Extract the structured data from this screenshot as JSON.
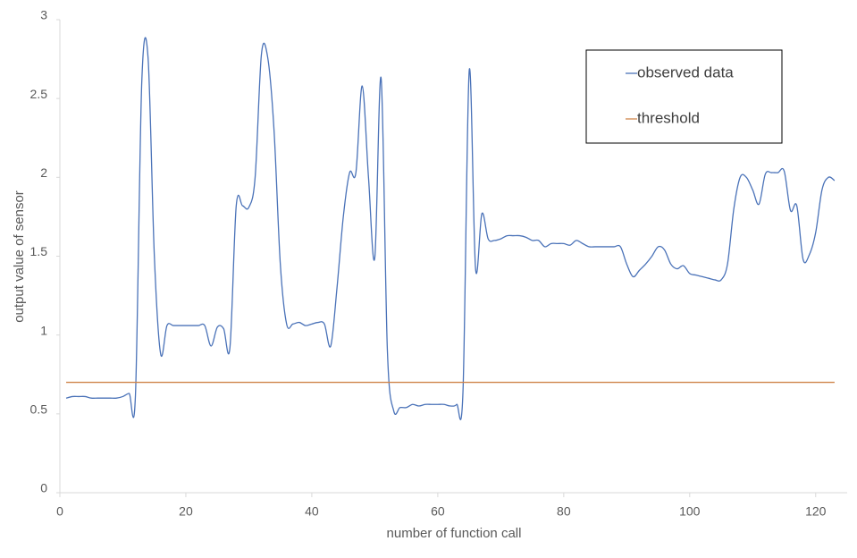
{
  "chart_data": {
    "type": "line",
    "x_label": "number of function call",
    "y_label": "output value of sensor",
    "xlim": [
      0,
      125
    ],
    "ylim": [
      0,
      3
    ],
    "xticks": [
      0,
      20,
      40,
      60,
      80,
      100,
      120
    ],
    "yticks": [
      0,
      0.5,
      1,
      1.5,
      2,
      2.5,
      3
    ],
    "grid": false,
    "legend": "upper right",
    "series": [
      {
        "name": "observed data",
        "color": "#4a72b8",
        "x": [
          1,
          2,
          3,
          4,
          5,
          6,
          7,
          8,
          9,
          10,
          11,
          12,
          13,
          14,
          15,
          16,
          17,
          18,
          19,
          20,
          21,
          22,
          23,
          24,
          25,
          26,
          27,
          28,
          29,
          30,
          31,
          32,
          33,
          34,
          35,
          36,
          37,
          38,
          39,
          40,
          41,
          42,
          43,
          44,
          45,
          46,
          47,
          48,
          49,
          50,
          51,
          52,
          53,
          54,
          55,
          56,
          57,
          58,
          59,
          60,
          61,
          62,
          63,
          64,
          65,
          66,
          67,
          68,
          69,
          70,
          71,
          72,
          73,
          74,
          75,
          76,
          77,
          78,
          79,
          80,
          81,
          82,
          83,
          84,
          85,
          86,
          87,
          88,
          89,
          90,
          91,
          92,
          93,
          94,
          95,
          96,
          97,
          98,
          99,
          100,
          101,
          102,
          103,
          104,
          105,
          106,
          107,
          108,
          109,
          110,
          111,
          112,
          113,
          114,
          115,
          116,
          117,
          118,
          119,
          120,
          121,
          122,
          123
        ],
        "values": [
          0.6,
          0.61,
          0.61,
          0.61,
          0.6,
          0.6,
          0.6,
          0.6,
          0.6,
          0.61,
          0.63,
          0.62,
          2.6,
          2.76,
          1.5,
          0.88,
          1.06,
          1.06,
          1.06,
          1.06,
          1.06,
          1.06,
          1.06,
          0.93,
          1.05,
          1.04,
          0.92,
          1.82,
          1.82,
          1.81,
          2.0,
          2.78,
          2.76,
          2.3,
          1.45,
          1.07,
          1.07,
          1.08,
          1.06,
          1.07,
          1.08,
          1.07,
          0.93,
          1.3,
          1.75,
          2.03,
          2.03,
          2.58,
          2.0,
          1.49,
          2.63,
          0.9,
          0.52,
          0.54,
          0.54,
          0.56,
          0.55,
          0.56,
          0.56,
          0.56,
          0.56,
          0.55,
          0.56,
          0.64,
          2.68,
          1.42,
          1.77,
          1.61,
          1.6,
          1.61,
          1.63,
          1.63,
          1.63,
          1.62,
          1.6,
          1.6,
          1.56,
          1.58,
          1.58,
          1.58,
          1.57,
          1.6,
          1.58,
          1.56,
          1.56,
          1.56,
          1.56,
          1.56,
          1.56,
          1.45,
          1.37,
          1.41,
          1.45,
          1.5,
          1.56,
          1.54,
          1.45,
          1.42,
          1.44,
          1.39,
          1.38,
          1.37,
          1.36,
          1.35,
          1.35,
          1.45,
          1.8,
          2.0,
          2.0,
          1.92,
          1.83,
          2.02,
          2.03,
          2.03,
          2.04,
          1.79,
          1.82,
          1.48,
          1.51,
          1.65,
          1.92,
          2.0,
          1.98
        ]
      },
      {
        "name": "threshold",
        "color": "#d0854a",
        "x": [
          1,
          123
        ],
        "values": [
          0.7,
          0.7
        ]
      }
    ]
  }
}
